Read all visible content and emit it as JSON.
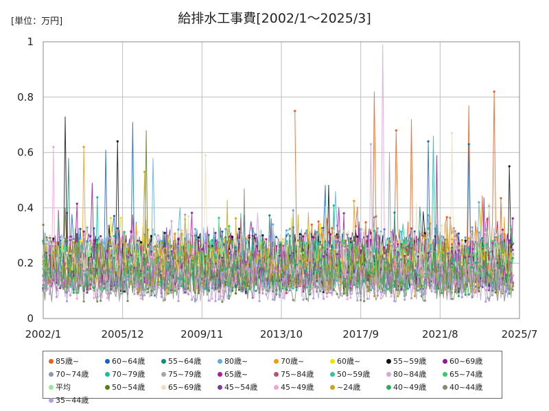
{
  "title": "給排水工事費[2002/1～2025/3]",
  "unit_label": "[単位：万円]",
  "chart_data": {
    "type": "line",
    "title": "給排水工事費[2002/1～2025/3]",
    "ylabel": "[単位：万円]",
    "xlabel": "",
    "x_range": [
      "2002-01",
      "2025-07"
    ],
    "ylim": [
      0,
      1
    ],
    "x_ticks": [
      "2002/1",
      "2005/12",
      "2009/11",
      "2013/10",
      "2017/9",
      "2021/8",
      "2025/7"
    ],
    "y_ticks": [
      "0",
      "0.2",
      "0.4",
      "0.6",
      "0.8",
      "1"
    ],
    "grid": true,
    "legend_position": "bottom",
    "series": [
      {
        "name": "85歳~",
        "color": "#e8601c",
        "base": 0.25,
        "amp": 0.12,
        "start": "2014-06",
        "peaks": [
          [
            "2014-06",
            0.75
          ],
          [
            "2018-05",
            0.82
          ],
          [
            "2019-06",
            0.68
          ],
          [
            "2020-03",
            0.72
          ],
          [
            "2024-04",
            0.82
          ],
          [
            "2023-01",
            0.77
          ]
        ]
      },
      {
        "name": "60~64歳",
        "color": "#1565c0",
        "base": 0.22,
        "amp": 0.11,
        "start": "2002-01",
        "peaks": [
          [
            "2006-06",
            0.71
          ],
          [
            "2005-02",
            0.61
          ],
          [
            "2021-01",
            0.64
          ],
          [
            "2023-01",
            0.63
          ]
        ]
      },
      {
        "name": "55~64歳",
        "color": "#138d75",
        "base": 0.2,
        "amp": 0.1,
        "start": "2002-01",
        "peaks": [
          [
            "2003-04",
            0.58
          ]
        ]
      },
      {
        "name": "80歳~",
        "color": "#5dade2",
        "base": 0.23,
        "amp": 0.1,
        "start": "2002-01",
        "peaks": [
          [
            "2007-06",
            0.58
          ]
        ]
      },
      {
        "name": "70歳~",
        "color": "#f39c12",
        "base": 0.21,
        "amp": 0.1,
        "start": "2002-01",
        "peaks": [
          [
            "2004-01",
            0.62
          ]
        ]
      },
      {
        "name": "60歳~",
        "color": "#f1e300",
        "base": 0.2,
        "amp": 0.09,
        "start": "2002-01",
        "peaks": []
      },
      {
        "name": "55~59歳",
        "color": "#111111",
        "base": 0.2,
        "amp": 0.11,
        "start": "2002-01",
        "peaks": [
          [
            "2003-02",
            0.73
          ],
          [
            "2005-09",
            0.64
          ],
          [
            "2025-01",
            0.55
          ]
        ]
      },
      {
        "name": "60~69歳",
        "color": "#8e1a9a",
        "base": 0.21,
        "amp": 0.1,
        "start": "2002-01",
        "peaks": [
          [
            "2004-06",
            0.49
          ],
          [
            "2021-06",
            0.59
          ]
        ]
      },
      {
        "name": "70~74歳",
        "color": "#8d99a6",
        "base": 0.19,
        "amp": 0.09,
        "start": "2002-01",
        "peaks": [
          [
            "2019-02",
            0.6
          ]
        ]
      },
      {
        "name": "70~79歳",
        "color": "#1abc9c",
        "base": 0.2,
        "amp": 0.1,
        "start": "2002-01",
        "peaks": [
          [
            "2021-04",
            0.66
          ]
        ]
      },
      {
        "name": "75~79歳",
        "color": "#a6a6a6",
        "base": 0.18,
        "amp": 0.09,
        "start": "2002-01",
        "peaks": []
      },
      {
        "name": "65歳~",
        "color": "#b5179e",
        "base": 0.2,
        "amp": 0.09,
        "start": "2002-01",
        "peaks": []
      },
      {
        "name": "75~84歳",
        "color": "#c0506a",
        "base": 0.18,
        "amp": 0.09,
        "start": "2002-01",
        "peaks": []
      },
      {
        "name": "50~59歳",
        "color": "#2ec4a0",
        "base": 0.19,
        "amp": 0.09,
        "start": "2002-01",
        "peaks": []
      },
      {
        "name": "80~84歳",
        "color": "#d6a6d6",
        "base": 0.21,
        "amp": 0.1,
        "start": "2002-01",
        "peaks": [
          [
            "2018-10",
            0.99
          ],
          [
            "2018-03",
            0.63
          ]
        ]
      },
      {
        "name": "65~74歳",
        "color": "#33cc66",
        "base": 0.19,
        "amp": 0.09,
        "start": "2002-01",
        "peaks": []
      },
      {
        "name": "平均",
        "color": "#99e699",
        "base": 0.2,
        "amp": 0.05,
        "start": "2002-01",
        "peaks": []
      },
      {
        "name": "50~54歳",
        "color": "#5a7d1a",
        "base": 0.18,
        "amp": 0.09,
        "start": "2002-01",
        "peaks": [
          [
            "2007-02",
            0.68
          ]
        ]
      },
      {
        "name": "65~69歳",
        "color": "#e8e0c0",
        "base": 0.22,
        "amp": 0.1,
        "start": "2002-01",
        "peaks": [
          [
            "2010-01",
            0.59
          ],
          [
            "2022-03",
            0.67
          ]
        ]
      },
      {
        "name": "45~54歳",
        "color": "#7d3c98",
        "base": 0.17,
        "amp": 0.08,
        "start": "2002-01",
        "peaks": []
      },
      {
        "name": "45~49歳",
        "color": "#f5a3d6",
        "base": 0.15,
        "amp": 0.08,
        "start": "2002-01",
        "peaks": [
          [
            "2002-07",
            0.62
          ]
        ]
      },
      {
        "name": "~24歳",
        "color": "#c8a41c",
        "base": 0.18,
        "amp": 0.1,
        "start": "2002-01",
        "peaks": [
          [
            "2007-01",
            0.53
          ]
        ]
      },
      {
        "name": "40~49歳",
        "color": "#27ae60",
        "base": 0.15,
        "amp": 0.07,
        "start": "2002-01",
        "peaks": []
      },
      {
        "name": "40~44歳",
        "color": "#7f8c6e",
        "base": 0.13,
        "amp": 0.07,
        "start": "2002-01",
        "peaks": [
          [
            "2011-12",
            0.47
          ]
        ]
      },
      {
        "name": "35~44歳",
        "color": "#b39ddb",
        "base": 0.12,
        "amp": 0.06,
        "start": "2002-01",
        "peaks": []
      }
    ]
  }
}
